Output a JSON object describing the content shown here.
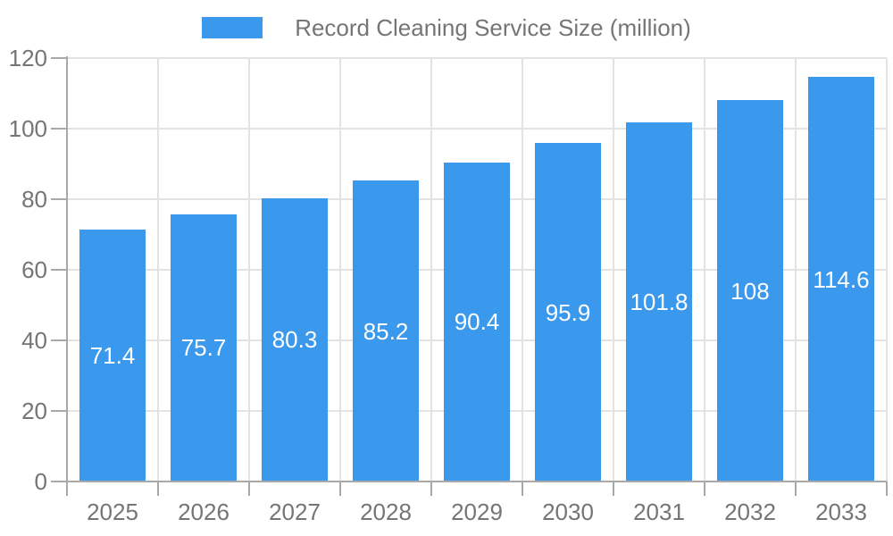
{
  "chart_data": {
    "type": "bar",
    "title": "",
    "categories": [
      "2025",
      "2026",
      "2027",
      "2028",
      "2029",
      "2030",
      "2031",
      "2032",
      "2033"
    ],
    "series": [
      {
        "name": "Record Cleaning Service Size (million)",
        "values": [
          71.4,
          75.7,
          80.3,
          85.2,
          90.4,
          95.9,
          101.8,
          108,
          114.6
        ]
      }
    ],
    "value_labels": [
      "71.4",
      "75.7",
      "80.3",
      "85.2",
      "90.4",
      "95.9",
      "101.8",
      "108",
      "114.6"
    ],
    "xlabel": "",
    "ylabel": "",
    "ylim": [
      0,
      120
    ],
    "ytick_step": 20,
    "ytick_labels": [
      "0",
      "20",
      "40",
      "60",
      "80",
      "100",
      "120"
    ],
    "grid": true,
    "legend_position": "top",
    "colors": {
      "bar": "#3A99EC",
      "value_label": "#FFFFFF",
      "axis_text": "#757575",
      "axis_line": "#A9A9A9",
      "gridline": "#E3E3E3",
      "background": "#FFFFFF"
    }
  }
}
